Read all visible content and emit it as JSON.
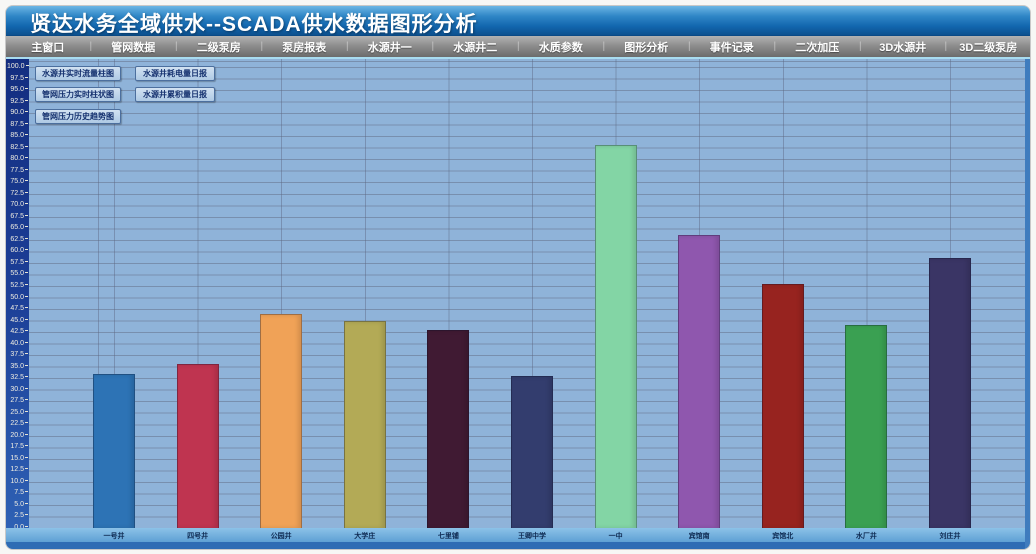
{
  "window": {
    "title": "贤达水务全域供水--SCADA供水数据图形分析"
  },
  "menu": {
    "items": [
      "主窗口",
      "管网数据",
      "二级泵房",
      "泵房报表",
      "水源井一",
      "水源井二",
      "水质参数",
      "图形分析",
      "事件记录",
      "二次加压",
      "3D水源井",
      "3D二级泵房"
    ]
  },
  "toolbar": {
    "buttons": [
      "水源井实时流量柱图",
      "管网压力实时柱状图",
      "管网压力历史趋势图",
      "水源井耗电量日报",
      "水源井累积量日报"
    ]
  },
  "chart_data": {
    "type": "bar",
    "title": "",
    "xlabel": "",
    "ylabel": "",
    "categories": [
      "一号井",
      "四号井",
      "公园井",
      "大学庄",
      "七里铺",
      "王卿中学",
      "一中",
      "宾馆南",
      "宾馆北",
      "水厂井",
      "刘庄井"
    ],
    "values": [
      33.5,
      35.5,
      46.5,
      45,
      43,
      33,
      83,
      63.5,
      53,
      44,
      58.5
    ],
    "bar_colors": [
      "#2d73b5",
      "#bf3450",
      "#f0a257",
      "#b3aa56",
      "#401a33",
      "#333d6e",
      "#83d5a5",
      "#8f57ae",
      "#97231f",
      "#3aa052",
      "#3a3565"
    ],
    "ylim": [
      0,
      100
    ],
    "ytick_step": 2.5,
    "ytick_labels": [
      "100.0",
      "97.5",
      "95.0",
      "92.5",
      "90.0",
      "87.5",
      "85.0",
      "82.5",
      "80.0",
      "77.5",
      "75.0",
      "72.5",
      "70.0",
      "67.5",
      "65.0",
      "62.5",
      "60.0",
      "57.5",
      "55.0",
      "52.5",
      "50.0",
      "47.5",
      "45.0",
      "42.5",
      "40.0",
      "37.5",
      "35.0",
      "32.5",
      "30.0",
      "27.5",
      "25.0",
      "22.5",
      "20.0",
      "17.5",
      "15.0",
      "12.5",
      "10.0",
      "7.5",
      "5.0",
      "2.5",
      "0.0"
    ],
    "grid": "horizontal every 2.5 units, vertical at each bar center",
    "legend": "none"
  },
  "colors": {
    "titlebar_top": "#55aadf",
    "titlebar_bottom": "#0d518f",
    "menu_top": "#b3b3b3",
    "menu_bottom": "#6b6b6b",
    "plot_background": "#8fb3d9",
    "axis_strip": "#16338c",
    "label_band": "#70aede",
    "bottom_band": "#2e6cb4",
    "button_background": "#bdd3ea",
    "button_text": "#14306e"
  }
}
